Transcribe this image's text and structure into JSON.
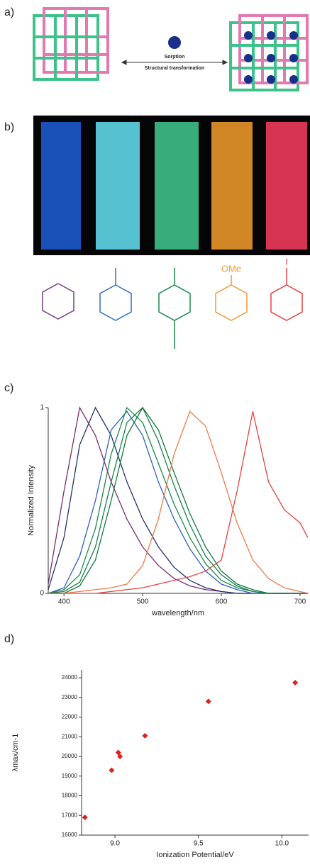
{
  "panel_labels": [
    "a)",
    "b)",
    "c)",
    "d)"
  ],
  "scheme": {
    "arrow_top": "Sorption",
    "arrow_bottom": "Structural transformation"
  },
  "substituents": [
    "OMe",
    "I"
  ],
  "chart_data": [
    {
      "type": "line",
      "xlabel": "wavelength/nm",
      "ylabel": "Normalized Intensity",
      "x": [
        380,
        400,
        420,
        440,
        460,
        480,
        500,
        520,
        540,
        560,
        580,
        600,
        620,
        640,
        660,
        680,
        700,
        710
      ],
      "xlim": [
        380,
        710
      ],
      "ylim": [
        0,
        1
      ],
      "xticks": [
        400,
        500,
        600,
        700
      ],
      "yticks": [
        0,
        1
      ],
      "series": [
        {
          "color": "#7a2c6e",
          "values": [
            0.05,
            0.55,
            1.0,
            0.85,
            0.6,
            0.4,
            0.25,
            0.15,
            0.08,
            0.04,
            0.02,
            0.01,
            0,
            0,
            0,
            0,
            0,
            0
          ]
        },
        {
          "color": "#23306e",
          "values": [
            0.02,
            0.3,
            0.8,
            1.0,
            0.85,
            0.6,
            0.4,
            0.25,
            0.14,
            0.07,
            0.03,
            0.01,
            0,
            0,
            0,
            0,
            0,
            0
          ]
        },
        {
          "color": "#2f5fc4",
          "values": [
            0,
            0.03,
            0.2,
            0.5,
            0.88,
            0.98,
            0.85,
            0.6,
            0.4,
            0.24,
            0.12,
            0.05,
            0.02,
            0,
            0,
            0,
            0,
            0
          ]
        },
        {
          "color": "#1a8a4a",
          "values": [
            0,
            0.02,
            0.1,
            0.35,
            0.75,
            1.0,
            0.92,
            0.7,
            0.48,
            0.3,
            0.16,
            0.07,
            0.03,
            0.01,
            0,
            0,
            0,
            0
          ]
        },
        {
          "color": "#16804a",
          "values": [
            0,
            0.01,
            0.06,
            0.25,
            0.6,
            0.92,
            1.0,
            0.82,
            0.58,
            0.37,
            0.2,
            0.1,
            0.04,
            0.01,
            0,
            0,
            0,
            0
          ]
        },
        {
          "color": "#0f7a3e",
          "values": [
            0,
            0,
            0.04,
            0.18,
            0.5,
            0.85,
            1.0,
            0.88,
            0.65,
            0.43,
            0.25,
            0.12,
            0.05,
            0.02,
            0,
            0,
            0,
            0
          ]
        },
        {
          "color": "#f07a4a",
          "values": [
            0,
            0,
            0.01,
            0.02,
            0.03,
            0.05,
            0.15,
            0.4,
            0.75,
            0.98,
            0.9,
            0.65,
            0.38,
            0.18,
            0.08,
            0.03,
            0.01,
            0
          ]
        },
        {
          "color": "#e8413c",
          "values": [
            0,
            0,
            0,
            0,
            0.01,
            0.02,
            0.03,
            0.05,
            0.07,
            0.09,
            0.12,
            0.18,
            0.55,
            0.98,
            0.6,
            0.45,
            0.38,
            0.3
          ]
        }
      ]
    },
    {
      "type": "scatter",
      "xlabel": "Ionization Potential/eV",
      "ylabel": "λmax/cm-1",
      "x": [
        8.82,
        8.98,
        9.02,
        9.03,
        9.18,
        9.56,
        10.08
      ],
      "values": [
        16900,
        19300,
        20200,
        20000,
        21050,
        22800,
        23750
      ],
      "color": "#e02020",
      "xlim": [
        8.8,
        10.16
      ],
      "ylim": [
        16000,
        24400
      ],
      "xticks": [
        {
          "value": 9,
          "label": "9.0"
        },
        9.5,
        {
          "value": 10,
          "label": "10.0"
        }
      ],
      "yticks": [
        16000,
        17000,
        18000,
        19000,
        20000,
        21000,
        22000,
        23000,
        24000
      ]
    }
  ]
}
